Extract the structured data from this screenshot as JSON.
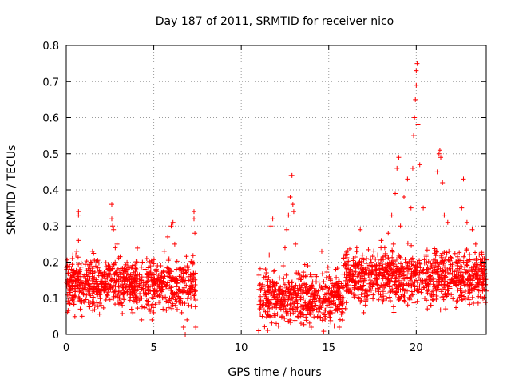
{
  "chart_data": {
    "type": "scatter",
    "title": "Day 187 of 2011, SRMTID for receiver nico",
    "xlabel": "GPS time / hours",
    "ylabel": "SRMTID / TECUs",
    "xlim": [
      0,
      24
    ],
    "ylim": [
      0,
      0.8
    ],
    "xticks": [
      0,
      5,
      10,
      15,
      20
    ],
    "xtick_labels": [
      "0",
      "5",
      "10",
      "15",
      "20"
    ],
    "yticks": [
      0,
      0.1,
      0.2,
      0.3,
      0.4,
      0.5,
      0.6,
      0.7,
      0.8
    ],
    "ytick_labels": [
      "0",
      "0.1",
      "0.2",
      "0.3",
      "0.4",
      "0.5",
      "0.6",
      "0.7",
      "0.8"
    ],
    "grid": true,
    "legend": "none",
    "marker": "plus",
    "marker_color": "#ff0000",
    "series": [
      {
        "name": "SRMTID",
        "color": "#ff0000",
        "segments": [
          {
            "x_start": 0.0,
            "x_end": 7.4,
            "center": 0.14,
            "spread": 0.09
          },
          {
            "x_start": 11.0,
            "x_end": 15.8,
            "center": 0.1,
            "spread": 0.09
          },
          {
            "x_start": 15.8,
            "x_end": 24.0,
            "center": 0.16,
            "spread": 0.1
          }
        ],
        "points": [
          [
            0.05,
            0.14
          ],
          [
            0.2,
            0.12
          ],
          [
            0.3,
            0.18
          ],
          [
            0.35,
            0.21
          ],
          [
            0.45,
            0.09
          ],
          [
            0.55,
            0.22
          ],
          [
            0.6,
            0.23
          ],
          [
            0.7,
            0.26
          ],
          [
            0.7,
            0.34
          ],
          [
            0.7,
            0.33
          ],
          [
            0.8,
            0.07
          ],
          [
            0.9,
            0.05
          ],
          [
            1.0,
            0.16
          ],
          [
            1.2,
            0.15
          ],
          [
            1.4,
            0.2
          ],
          [
            1.5,
            0.23
          ],
          [
            1.6,
            0.14
          ],
          [
            1.8,
            0.12
          ],
          [
            2.0,
            0.08
          ],
          [
            2.2,
            0.13
          ],
          [
            2.4,
            0.19
          ],
          [
            2.6,
            0.36
          ],
          [
            2.6,
            0.32
          ],
          [
            2.65,
            0.3
          ],
          [
            2.7,
            0.29
          ],
          [
            2.8,
            0.24
          ],
          [
            2.9,
            0.25
          ],
          [
            3.0,
            0.16
          ],
          [
            3.2,
            0.08
          ],
          [
            3.4,
            0.13
          ],
          [
            3.6,
            0.11
          ],
          [
            3.8,
            0.06
          ],
          [
            4.0,
            0.09
          ],
          [
            4.2,
            0.14
          ],
          [
            4.3,
            0.04
          ],
          [
            4.5,
            0.18
          ],
          [
            4.6,
            0.21
          ],
          [
            4.7,
            0.13
          ],
          [
            4.9,
            0.04
          ],
          [
            5.0,
            0.06
          ],
          [
            5.2,
            0.12
          ],
          [
            5.4,
            0.19
          ],
          [
            5.6,
            0.23
          ],
          [
            5.8,
            0.27
          ],
          [
            6.0,
            0.3
          ],
          [
            6.1,
            0.31
          ],
          [
            6.2,
            0.25
          ],
          [
            6.3,
            0.18
          ],
          [
            6.5,
            0.12
          ],
          [
            6.6,
            0.06
          ],
          [
            6.7,
            0.02
          ],
          [
            6.8,
            0.0
          ],
          [
            6.9,
            0.04
          ],
          [
            7.0,
            0.08
          ],
          [
            7.1,
            0.16
          ],
          [
            7.2,
            0.2
          ],
          [
            7.3,
            0.34
          ],
          [
            7.3,
            0.32
          ],
          [
            7.35,
            0.28
          ],
          [
            7.4,
            0.02
          ],
          [
            11.0,
            0.01
          ],
          [
            11.2,
            0.08
          ],
          [
            11.4,
            0.16
          ],
          [
            11.6,
            0.22
          ],
          [
            11.7,
            0.3
          ],
          [
            11.8,
            0.32
          ],
          [
            12.0,
            0.03
          ],
          [
            12.2,
            0.11
          ],
          [
            12.4,
            0.19
          ],
          [
            12.5,
            0.24
          ],
          [
            12.6,
            0.29
          ],
          [
            12.7,
            0.33
          ],
          [
            12.8,
            0.38
          ],
          [
            12.85,
            0.44
          ],
          [
            12.9,
            0.44
          ],
          [
            12.95,
            0.36
          ],
          [
            13.0,
            0.34
          ],
          [
            13.1,
            0.25
          ],
          [
            13.2,
            0.09
          ],
          [
            13.4,
            0.05
          ],
          [
            13.6,
            0.14
          ],
          [
            13.8,
            0.19
          ],
          [
            14.0,
            0.02
          ],
          [
            14.2,
            0.08
          ],
          [
            14.4,
            0.12
          ],
          [
            14.6,
            0.23
          ],
          [
            14.8,
            0.05
          ],
          [
            15.0,
            0.09
          ],
          [
            15.2,
            0.14
          ],
          [
            15.4,
            0.18
          ],
          [
            15.6,
            0.02
          ],
          [
            15.8,
            0.06
          ],
          [
            16.0,
            0.12
          ],
          [
            16.2,
            0.17
          ],
          [
            16.4,
            0.21
          ],
          [
            16.6,
            0.24
          ],
          [
            16.8,
            0.29
          ],
          [
            17.0,
            0.06
          ],
          [
            17.2,
            0.1
          ],
          [
            17.5,
            0.17
          ],
          [
            17.8,
            0.22
          ],
          [
            18.0,
            0.26
          ],
          [
            18.2,
            0.24
          ],
          [
            18.4,
            0.28
          ],
          [
            18.6,
            0.33
          ],
          [
            18.7,
            0.25
          ],
          [
            18.8,
            0.39
          ],
          [
            18.9,
            0.46
          ],
          [
            19.0,
            0.49
          ],
          [
            19.1,
            0.3
          ],
          [
            19.3,
            0.38
          ],
          [
            19.5,
            0.43
          ],
          [
            19.7,
            0.35
          ],
          [
            19.8,
            0.46
          ],
          [
            19.85,
            0.55
          ],
          [
            19.9,
            0.6
          ],
          [
            19.95,
            0.65
          ],
          [
            20.0,
            0.69
          ],
          [
            20.0,
            0.73
          ],
          [
            20.05,
            0.75
          ],
          [
            20.1,
            0.58
          ],
          [
            20.2,
            0.47
          ],
          [
            20.4,
            0.35
          ],
          [
            20.6,
            0.18
          ],
          [
            20.8,
            0.08
          ],
          [
            21.0,
            0.17
          ],
          [
            21.2,
            0.45
          ],
          [
            21.3,
            0.5
          ],
          [
            21.35,
            0.51
          ],
          [
            21.4,
            0.49
          ],
          [
            21.5,
            0.42
          ],
          [
            21.6,
            0.33
          ],
          [
            21.8,
            0.31
          ],
          [
            22.0,
            0.11
          ],
          [
            22.3,
            0.09
          ],
          [
            22.6,
            0.35
          ],
          [
            22.7,
            0.43
          ],
          [
            22.9,
            0.31
          ],
          [
            23.2,
            0.29
          ],
          [
            23.4,
            0.25
          ],
          [
            23.6,
            0.22
          ],
          [
            23.8,
            0.17
          ],
          [
            24.0,
            0.12
          ]
        ]
      }
    ]
  }
}
